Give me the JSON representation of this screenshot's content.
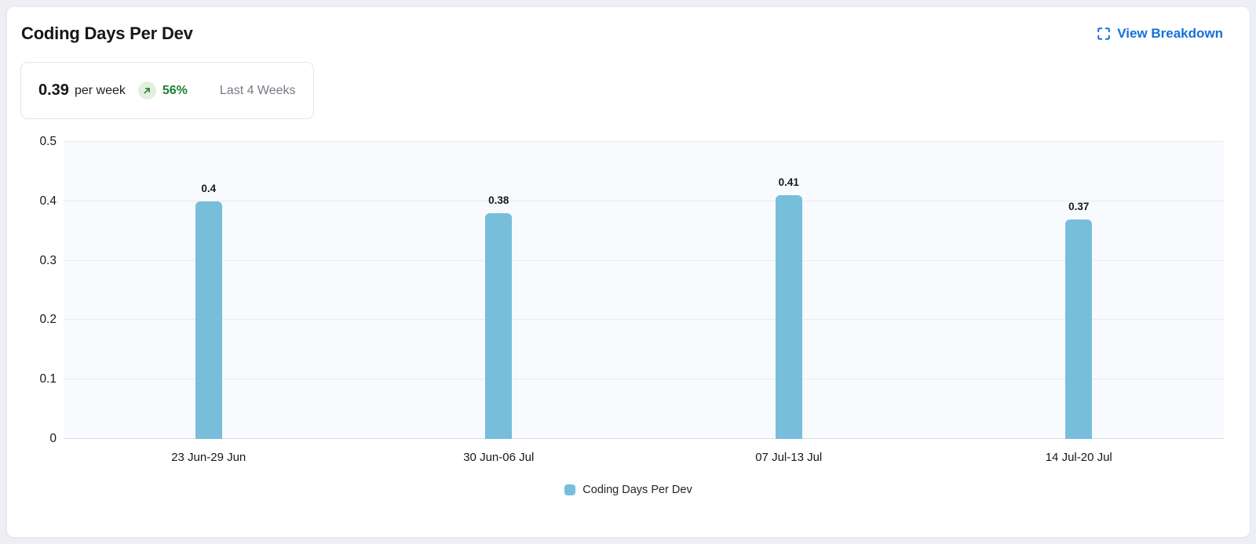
{
  "header": {
    "title": "Coding Days Per Dev",
    "view_breakdown": "View Breakdown"
  },
  "summary": {
    "value": "0.39",
    "unit": "per week",
    "trend_direction": "up",
    "trend_percent": "56%",
    "period": "Last 4 Weeks"
  },
  "chart_data": {
    "type": "bar",
    "title": "Coding Days Per Dev",
    "categories": [
      "23 Jun-29 Jun",
      "30 Jun-06 Jul",
      "07 Jul-13 Jul",
      "14 Jul-20 Jul"
    ],
    "values": [
      0.4,
      0.38,
      0.41,
      0.37
    ],
    "value_labels": [
      "0.4",
      "0.38",
      "0.41",
      "0.37"
    ],
    "xlabel": "",
    "ylabel": "",
    "ylim": [
      0,
      0.5
    ],
    "y_ticks": [
      0,
      0.1,
      0.2,
      0.3,
      0.4,
      0.5
    ],
    "y_tick_labels": [
      "0",
      "0.1",
      "0.2",
      "0.3",
      "0.4",
      "0.5"
    ],
    "grid": true,
    "legend": [
      {
        "label": "Coding Days Per Dev",
        "color": "#77bedb"
      }
    ],
    "legend_position": "bottom"
  },
  "colors": {
    "accent_blue": "#1670d8",
    "positive_green": "#1e7e34",
    "positive_badge_bg": "#dff0de",
    "bar_fill": "#77bedb",
    "plot_background": "#f9fafd",
    "gridline": "#e9ebf1",
    "axis_line": "#d9dce1",
    "page_background": "#edeff4",
    "card_border": "#e7e9ee"
  }
}
